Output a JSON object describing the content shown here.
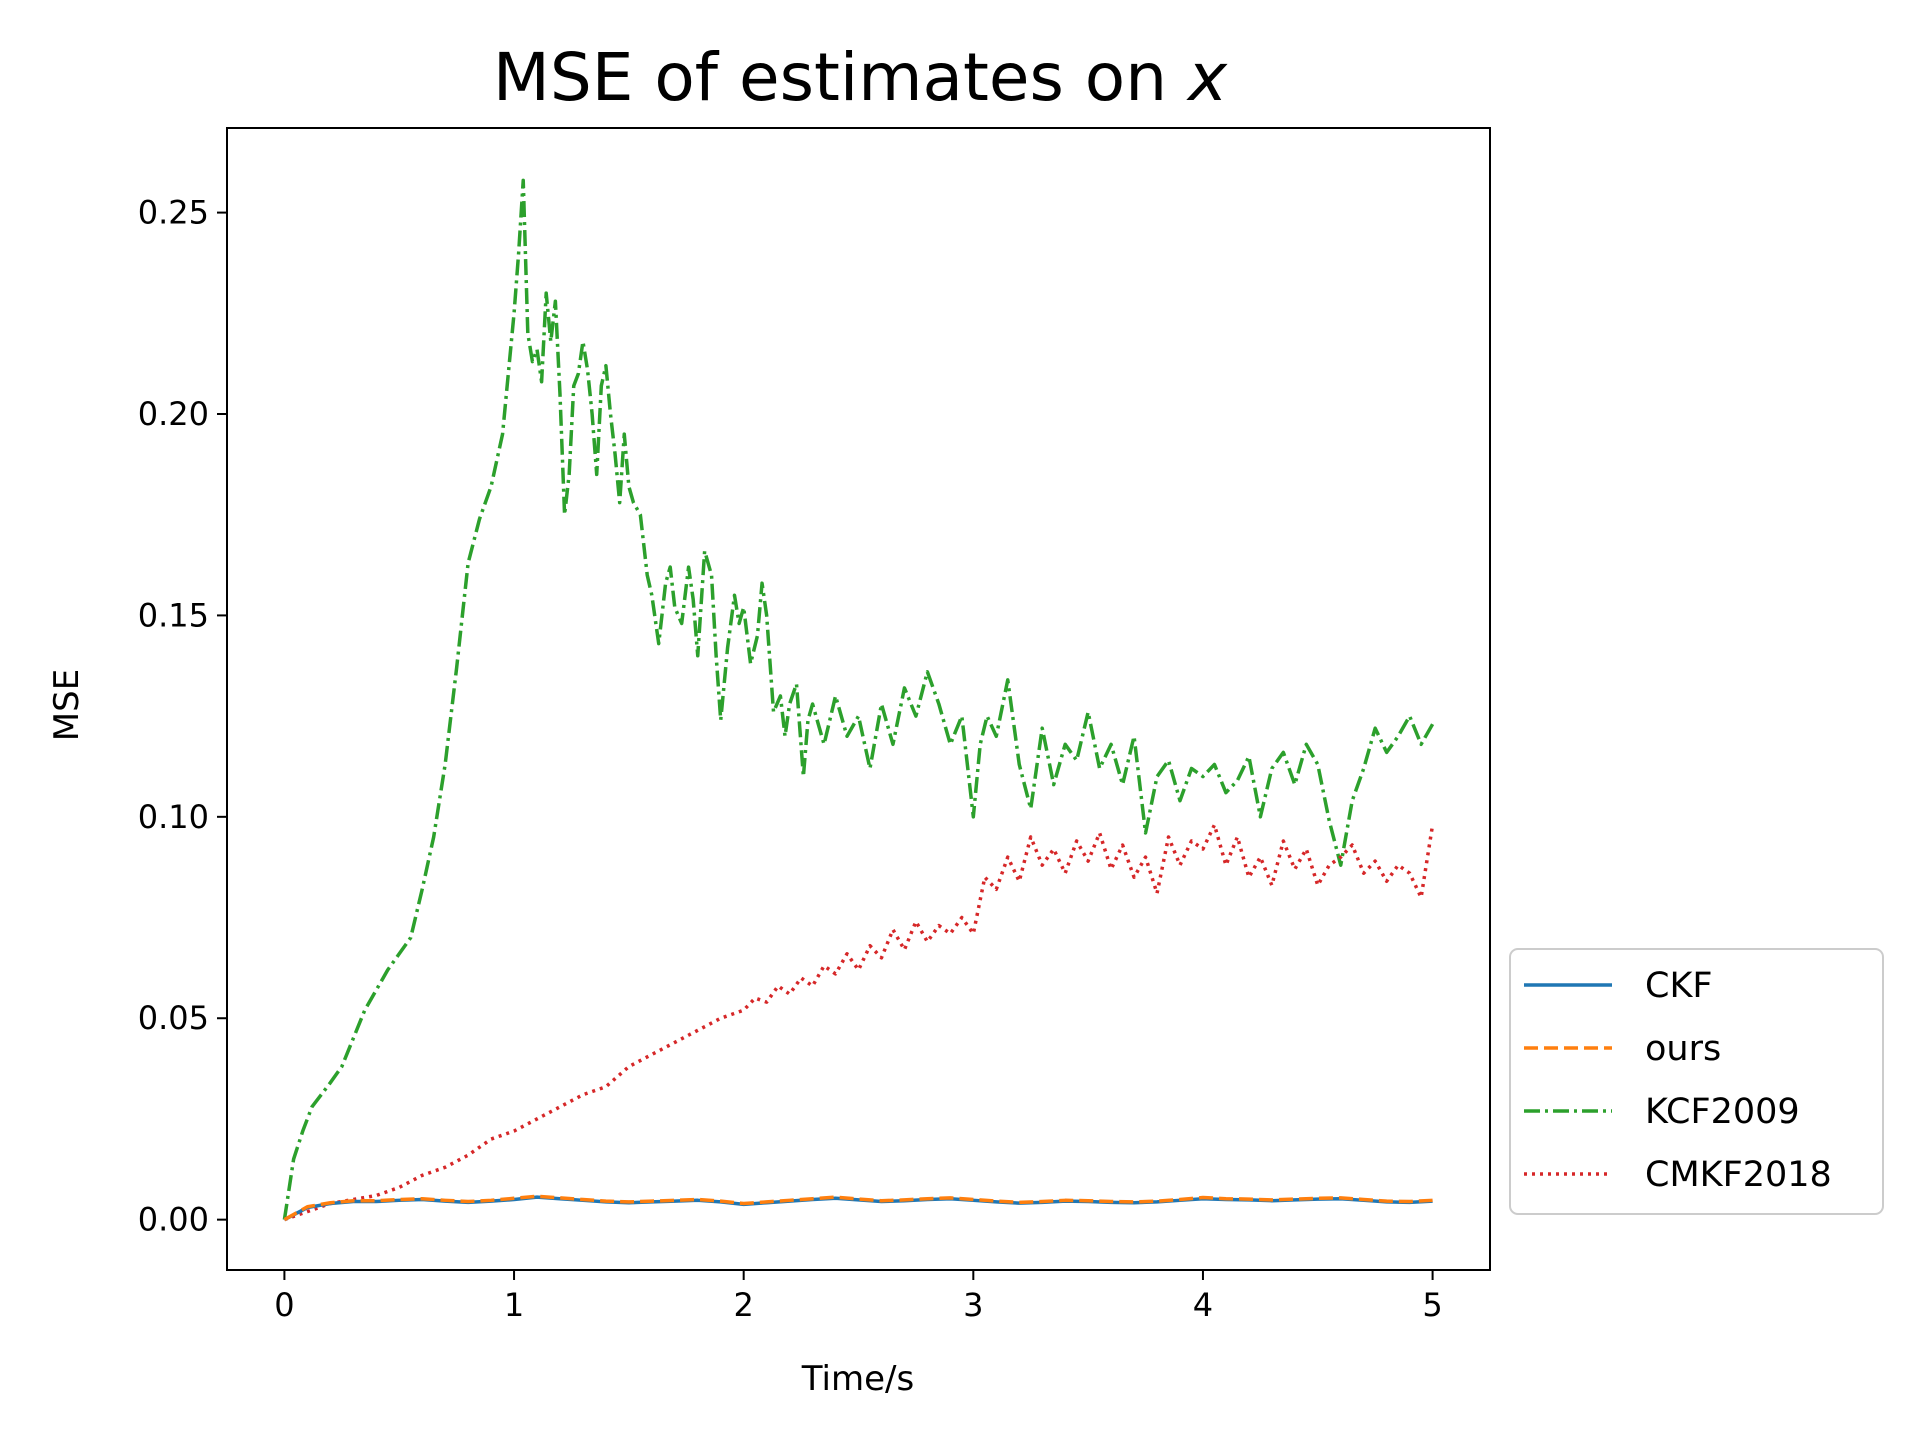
{
  "chart_data": {
    "type": "line",
    "title": "MSE of estimates on",
    "title_variable": "x",
    "xlabel": "Time/s",
    "ylabel": "MSE",
    "xlim": [
      -0.25,
      5.25
    ],
    "ylim": [
      -0.0125,
      0.271
    ],
    "xticks": [
      0,
      1,
      2,
      3,
      4,
      5
    ],
    "xtick_labels": [
      "0",
      "1",
      "2",
      "3",
      "4",
      "5"
    ],
    "yticks": [
      0.0,
      0.05,
      0.1,
      0.15,
      0.2,
      0.25
    ],
    "ytick_labels": [
      "0.00",
      "0.05",
      "0.10",
      "0.15",
      "0.20",
      "0.25"
    ],
    "grid": false,
    "legend_position": "outside-right-bottom",
    "series": [
      {
        "name": "CKF",
        "color": "#1f77b4",
        "dash": "solid",
        "x": [
          0,
          0.1,
          0.2,
          0.3,
          0.4,
          0.5,
          0.6,
          0.7,
          0.8,
          0.9,
          1.0,
          1.1,
          1.2,
          1.3,
          1.4,
          1.5,
          1.6,
          1.7,
          1.8,
          1.9,
          2.0,
          2.1,
          2.2,
          2.3,
          2.4,
          2.5,
          2.6,
          2.7,
          2.8,
          2.9,
          3.0,
          3.1,
          3.2,
          3.3,
          3.4,
          3.5,
          3.6,
          3.7,
          3.8,
          3.9,
          4.0,
          4.1,
          4.2,
          4.3,
          4.4,
          4.5,
          4.6,
          4.7,
          4.8,
          4.9,
          5.0
        ],
        "y": [
          0.0,
          0.003,
          0.004,
          0.0045,
          0.0045,
          0.0048,
          0.005,
          0.0046,
          0.0043,
          0.0046,
          0.005,
          0.0056,
          0.0052,
          0.0048,
          0.0044,
          0.0042,
          0.0044,
          0.0046,
          0.0048,
          0.0044,
          0.0038,
          0.0042,
          0.0046,
          0.005,
          0.0053,
          0.0049,
          0.0045,
          0.0047,
          0.005,
          0.0052,
          0.0048,
          0.0044,
          0.0041,
          0.0043,
          0.0046,
          0.0045,
          0.0043,
          0.0042,
          0.0044,
          0.0048,
          0.0052,
          0.005,
          0.0049,
          0.0047,
          0.0049,
          0.0051,
          0.0052,
          0.0048,
          0.0044,
          0.0043,
          0.0046
        ]
      },
      {
        "name": "ours",
        "color": "#ff7f0e",
        "dash": "dashed",
        "x": [
          0,
          0.1,
          0.2,
          0.3,
          0.4,
          0.5,
          0.6,
          0.7,
          0.8,
          0.9,
          1.0,
          1.1,
          1.2,
          1.3,
          1.4,
          1.5,
          1.6,
          1.7,
          1.8,
          1.9,
          2.0,
          2.1,
          2.2,
          2.3,
          2.4,
          2.5,
          2.6,
          2.7,
          2.8,
          2.9,
          3.0,
          3.1,
          3.2,
          3.3,
          3.4,
          3.5,
          3.6,
          3.7,
          3.8,
          3.9,
          4.0,
          4.1,
          4.2,
          4.3,
          4.4,
          4.5,
          4.6,
          4.7,
          4.8,
          4.9,
          5.0
        ],
        "y": [
          0.0,
          0.0032,
          0.0042,
          0.0047,
          0.0047,
          0.005,
          0.0052,
          0.0048,
          0.0045,
          0.0048,
          0.0053,
          0.0058,
          0.0054,
          0.005,
          0.0046,
          0.0044,
          0.0046,
          0.0048,
          0.005,
          0.0046,
          0.004,
          0.0044,
          0.0048,
          0.0052,
          0.0056,
          0.0051,
          0.0047,
          0.0049,
          0.0052,
          0.0054,
          0.005,
          0.0046,
          0.0043,
          0.0045,
          0.0048,
          0.0047,
          0.0045,
          0.0044,
          0.0046,
          0.005,
          0.0055,
          0.0052,
          0.0051,
          0.0049,
          0.0051,
          0.0053,
          0.0054,
          0.005,
          0.0046,
          0.0045,
          0.0048
        ]
      },
      {
        "name": "KCF2009",
        "color": "#2ca02c",
        "dash": "dashdot",
        "x": [
          0,
          0.04,
          0.08,
          0.12,
          0.16,
          0.2,
          0.25,
          0.3,
          0.35,
          0.4,
          0.45,
          0.5,
          0.55,
          0.6,
          0.65,
          0.7,
          0.75,
          0.8,
          0.85,
          0.9,
          0.95,
          1.0,
          1.02,
          1.04,
          1.06,
          1.08,
          1.1,
          1.12,
          1.14,
          1.16,
          1.18,
          1.2,
          1.22,
          1.24,
          1.26,
          1.28,
          1.3,
          1.32,
          1.34,
          1.36,
          1.38,
          1.4,
          1.42,
          1.44,
          1.46,
          1.48,
          1.5,
          1.52,
          1.55,
          1.58,
          1.6,
          1.63,
          1.66,
          1.68,
          1.7,
          1.73,
          1.76,
          1.78,
          1.8,
          1.83,
          1.86,
          1.88,
          1.9,
          1.93,
          1.96,
          1.98,
          2.0,
          2.03,
          2.06,
          2.08,
          2.1,
          2.13,
          2.16,
          2.18,
          2.2,
          2.23,
          2.26,
          2.28,
          2.3,
          2.35,
          2.4,
          2.45,
          2.5,
          2.55,
          2.6,
          2.65,
          2.7,
          2.75,
          2.8,
          2.85,
          2.9,
          2.95,
          3.0,
          3.03,
          3.06,
          3.1,
          3.15,
          3.2,
          3.25,
          3.3,
          3.35,
          3.4,
          3.45,
          3.5,
          3.55,
          3.6,
          3.65,
          3.7,
          3.75,
          3.8,
          3.85,
          3.9,
          3.95,
          4.0,
          4.05,
          4.1,
          4.15,
          4.2,
          4.25,
          4.3,
          4.35,
          4.4,
          4.45,
          4.5,
          4.55,
          4.6,
          4.65,
          4.7,
          4.75,
          4.8,
          4.85,
          4.9,
          4.95,
          5.0
        ],
        "y": [
          0.0,
          0.015,
          0.022,
          0.028,
          0.031,
          0.034,
          0.038,
          0.045,
          0.052,
          0.057,
          0.062,
          0.066,
          0.07,
          0.082,
          0.095,
          0.113,
          0.137,
          0.163,
          0.174,
          0.182,
          0.195,
          0.225,
          0.24,
          0.258,
          0.22,
          0.213,
          0.216,
          0.208,
          0.23,
          0.218,
          0.228,
          0.205,
          0.175,
          0.185,
          0.207,
          0.21,
          0.218,
          0.211,
          0.2,
          0.185,
          0.207,
          0.212,
          0.2,
          0.19,
          0.178,
          0.195,
          0.182,
          0.178,
          0.175,
          0.16,
          0.155,
          0.143,
          0.158,
          0.162,
          0.152,
          0.148,
          0.162,
          0.154,
          0.14,
          0.166,
          0.16,
          0.14,
          0.124,
          0.142,
          0.155,
          0.148,
          0.152,
          0.138,
          0.145,
          0.158,
          0.15,
          0.126,
          0.13,
          0.12,
          0.128,
          0.133,
          0.11,
          0.124,
          0.128,
          0.118,
          0.13,
          0.12,
          0.125,
          0.112,
          0.128,
          0.118,
          0.132,
          0.125,
          0.136,
          0.128,
          0.118,
          0.125,
          0.1,
          0.118,
          0.125,
          0.12,
          0.134,
          0.113,
          0.102,
          0.122,
          0.108,
          0.118,
          0.114,
          0.126,
          0.112,
          0.118,
          0.108,
          0.12,
          0.096,
          0.11,
          0.114,
          0.104,
          0.112,
          0.11,
          0.113,
          0.106,
          0.109,
          0.115,
          0.1,
          0.112,
          0.116,
          0.108,
          0.118,
          0.113,
          0.099,
          0.088,
          0.104,
          0.112,
          0.122,
          0.116,
          0.12,
          0.125,
          0.118,
          0.123
        ]
      },
      {
        "name": "CMKF2018",
        "color": "#d62728",
        "dash": "dotted",
        "x": [
          0,
          0.1,
          0.2,
          0.3,
          0.4,
          0.5,
          0.6,
          0.7,
          0.8,
          0.9,
          1.0,
          1.1,
          1.2,
          1.3,
          1.4,
          1.5,
          1.6,
          1.7,
          1.8,
          1.9,
          2.0,
          2.05,
          2.1,
          2.15,
          2.2,
          2.25,
          2.3,
          2.35,
          2.4,
          2.45,
          2.5,
          2.55,
          2.6,
          2.65,
          2.7,
          2.75,
          2.8,
          2.85,
          2.9,
          2.95,
          3.0,
          3.05,
          3.1,
          3.15,
          3.2,
          3.25,
          3.3,
          3.35,
          3.4,
          3.45,
          3.5,
          3.55,
          3.6,
          3.65,
          3.7,
          3.75,
          3.8,
          3.85,
          3.9,
          3.95,
          4.0,
          4.05,
          4.1,
          4.15,
          4.2,
          4.25,
          4.3,
          4.35,
          4.4,
          4.45,
          4.5,
          4.55,
          4.6,
          4.65,
          4.7,
          4.75,
          4.8,
          4.85,
          4.9,
          4.95,
          5.0
        ],
        "y": [
          0.0,
          0.002,
          0.004,
          0.005,
          0.006,
          0.008,
          0.011,
          0.013,
          0.016,
          0.02,
          0.022,
          0.025,
          0.028,
          0.031,
          0.033,
          0.038,
          0.041,
          0.044,
          0.047,
          0.05,
          0.052,
          0.055,
          0.054,
          0.058,
          0.056,
          0.06,
          0.058,
          0.063,
          0.061,
          0.066,
          0.062,
          0.068,
          0.065,
          0.072,
          0.067,
          0.074,
          0.069,
          0.073,
          0.071,
          0.075,
          0.071,
          0.085,
          0.082,
          0.09,
          0.084,
          0.095,
          0.088,
          0.092,
          0.086,
          0.094,
          0.089,
          0.096,
          0.087,
          0.093,
          0.085,
          0.09,
          0.081,
          0.095,
          0.088,
          0.094,
          0.092,
          0.098,
          0.088,
          0.095,
          0.085,
          0.09,
          0.083,
          0.094,
          0.087,
          0.092,
          0.083,
          0.088,
          0.09,
          0.093,
          0.086,
          0.089,
          0.084,
          0.088,
          0.086,
          0.08,
          0.098
        ]
      }
    ]
  }
}
